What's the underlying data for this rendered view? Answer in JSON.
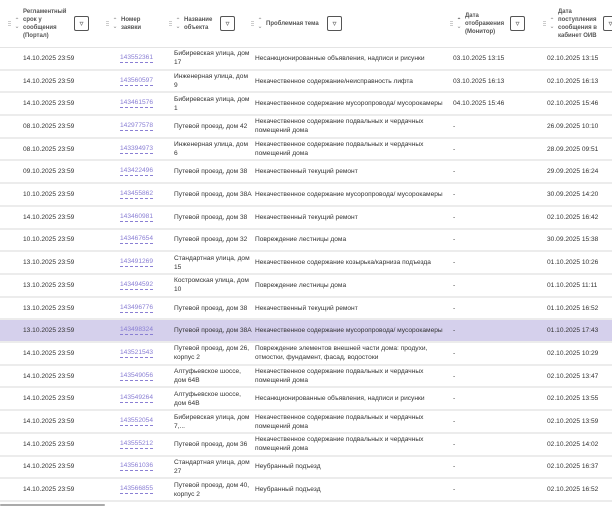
{
  "columns": [
    {
      "label": "Регламентный срок у сообщения (Портал)",
      "filter": true,
      "sort": "none"
    },
    {
      "label": "Номер заявки",
      "filter": false,
      "sort": "none"
    },
    {
      "label": "Название объекта",
      "filter": true,
      "sort": "none"
    },
    {
      "label": "Проблемная тема",
      "filter": true,
      "sort": "none"
    },
    {
      "label": "Дата отображения (Монитор)",
      "filter": true,
      "sort": "asc"
    },
    {
      "label": "Дата поступления сообщения в кабинет ОИВ",
      "filter": true,
      "sort": "none"
    }
  ],
  "filter_icon": "funnel-icon",
  "selected_row_color": "#d5d0ec",
  "link_color": "#8a7fd4",
  "rows": [
    {
      "deadline": "14.10.2025 23:59",
      "number": "143552361",
      "object": "Бибиревская улица, дом 17",
      "topic": "Несанкционированные объявления, надписи и рисунки",
      "monitor": "03.10.2025 13:15",
      "oiv": "02.10.2025 13:15"
    },
    {
      "deadline": "14.10.2025 23:59",
      "number": "143560597",
      "object": "Инженерная улица, дом 9",
      "topic": "Некачественное содержание/неисправность лифта",
      "monitor": "03.10.2025 16:13",
      "oiv": "02.10.2025 16:13"
    },
    {
      "deadline": "14.10.2025 23:59",
      "number": "143461576",
      "object": "Бибиревская улица, дом 1",
      "topic": "Некачественное содержание мусоропровода/ мусорокамеры",
      "monitor": "04.10.2025 15:46",
      "oiv": "02.10.2025 15:46"
    },
    {
      "deadline": "08.10.2025 23:59",
      "number": "142977578",
      "object": "Путевой проезд, дом 42",
      "topic": "Некачественное содержание подвальных и чердачных помещений дома",
      "monitor": "-",
      "oiv": "26.09.2025 10:10"
    },
    {
      "deadline": "08.10.2025 23:59",
      "number": "143394973",
      "object": "Инженерная улица, дом 6",
      "topic": "Некачественное содержание подвальных и чердачных помещений дома",
      "monitor": "-",
      "oiv": "28.09.2025 09:51"
    },
    {
      "deadline": "09.10.2025 23:59",
      "number": "143422496",
      "object": "Путевой проезд, дом 38",
      "topic": "Некачественный текущий ремонт",
      "monitor": "-",
      "oiv": "29.09.2025 16:24"
    },
    {
      "deadline": "10.10.2025 23:59",
      "number": "143455862",
      "object": "Путевой проезд, дом 38А",
      "topic": "Некачественное содержание мусоропровода/ мусорокамеры",
      "monitor": "-",
      "oiv": "30.09.2025 14:20"
    },
    {
      "deadline": "14.10.2025 23:59",
      "number": "143460981",
      "object": "Путевой проезд, дом 38",
      "topic": "Некачественный текущий ремонт",
      "monitor": "-",
      "oiv": "02.10.2025 16:42"
    },
    {
      "deadline": "10.10.2025 23:59",
      "number": "143467654",
      "object": "Путевой проезд, дом 32",
      "topic": "Повреждение лестницы дома",
      "monitor": "-",
      "oiv": "30.09.2025 15:38"
    },
    {
      "deadline": "13.10.2025 23:59",
      "number": "143491269",
      "object": "Стандартная улица, дом 15",
      "topic": "Некачественное содержание козырька/карниза подъезда",
      "monitor": "-",
      "oiv": "01.10.2025 10:26"
    },
    {
      "deadline": "13.10.2025 23:59",
      "number": "143494592",
      "object": "Костромская улица, дом 10",
      "topic": "Повреждение лестницы дома",
      "monitor": "-",
      "oiv": "01.10.2025 11:11"
    },
    {
      "deadline": "13.10.2025 23:59",
      "number": "143496776",
      "object": "Путевой проезд, дом 38",
      "topic": "Некачественный текущий ремонт",
      "monitor": "-",
      "oiv": "01.10.2025 16:52"
    },
    {
      "deadline": "13.10.2025 23:59",
      "number": "143498324",
      "object": "Путевой проезд, дом 38А",
      "topic": "Некачественное содержание мусоропровода/ мусорокамеры",
      "monitor": "-",
      "oiv": "01.10.2025 17:43",
      "selected": true
    },
    {
      "deadline": "14.10.2025 23:59",
      "number": "143521543",
      "object": "Путевой проезд, дом 26, корпус 2",
      "topic": "Повреждение элементов внешней части дома: продухи, отмостки, фундамент, фасад, водостоки",
      "monitor": "-",
      "oiv": "02.10.2025 10:29"
    },
    {
      "deadline": "14.10.2025 23:59",
      "number": "143549056",
      "object": "Алтуфьевское шоссе, дом 64В",
      "topic": "Некачественное содержание подвальных и чердачных помещений дома",
      "monitor": "-",
      "oiv": "02.10.2025 13:47"
    },
    {
      "deadline": "14.10.2025 23:59",
      "number": "143549264",
      "object": "Алтуфьевское шоссе, дом 64В",
      "topic": "Несанкционированные объявления, надписи и рисунки",
      "monitor": "-",
      "oiv": "02.10.2025 13:55"
    },
    {
      "deadline": "14.10.2025 23:59",
      "number": "143552054",
      "object": "Бибиревская улица, дом 7,...",
      "topic": "Некачественное содержание подвальных и чердачных помещений дома",
      "monitor": "-",
      "oiv": "02.10.2025 13:59"
    },
    {
      "deadline": "14.10.2025 23:59",
      "number": "143555212",
      "object": "Путевой проезд, дом 36",
      "topic": "Некачественное содержание подвальных и чердачных помещений дома",
      "monitor": "-",
      "oiv": "02.10.2025 14:02"
    },
    {
      "deadline": "14.10.2025 23:59",
      "number": "143561036",
      "object": "Стандартная улица, дом 27",
      "topic": "Неубранный подъезд",
      "monitor": "-",
      "oiv": "02.10.2025 16:37"
    },
    {
      "deadline": "14.10.2025 23:59",
      "number": "143566855",
      "object": "Путевой проезд, дом 40, корпус 2",
      "topic": "Неубранный подъезд",
      "monitor": "-",
      "oiv": "02.10.2025 16:52"
    }
  ]
}
